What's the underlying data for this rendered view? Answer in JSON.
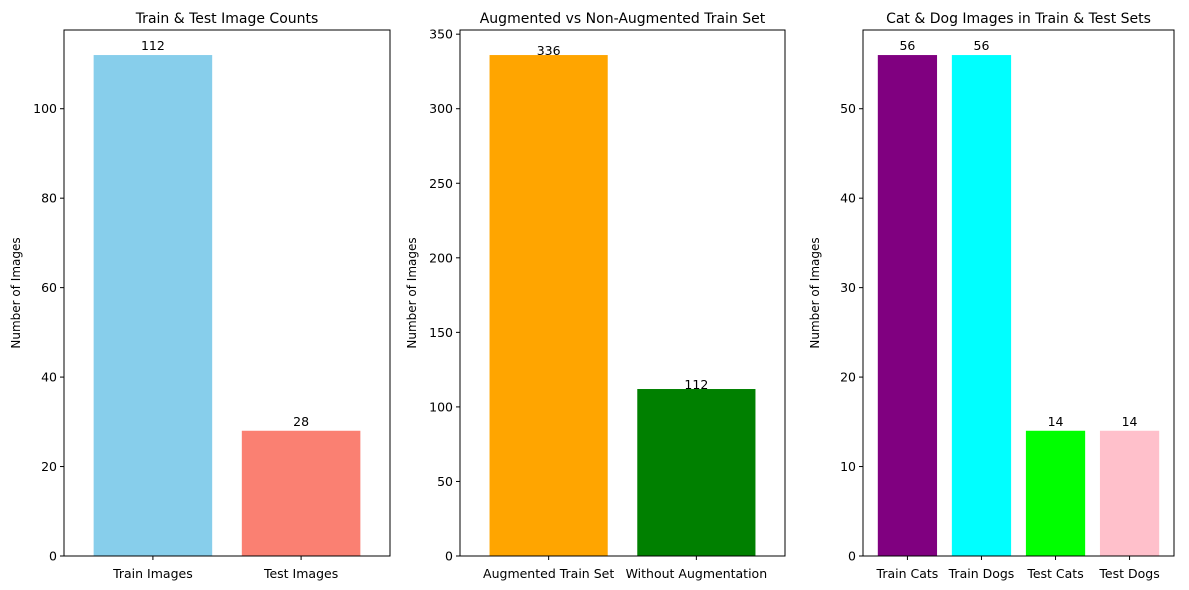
{
  "chart_data": [
    {
      "type": "bar",
      "title": "Train & Test Image Counts",
      "xlabel": "",
      "ylabel": "Number of Images",
      "categories": [
        "Train Images",
        "Test Images"
      ],
      "values": [
        112,
        28
      ],
      "data_labels": [
        "112",
        "28"
      ],
      "colors": [
        "#87ceeb",
        "#fa8072"
      ],
      "ylim": [
        0,
        117.6
      ],
      "yticks": [
        0,
        20,
        40,
        60,
        80,
        100
      ],
      "ytick_labels": [
        "0",
        "20",
        "40",
        "60",
        "80",
        "100"
      ],
      "grid": false,
      "legend": "none"
    },
    {
      "type": "bar",
      "title": "Augmented vs Non-Augmented Train Set",
      "xlabel": "",
      "ylabel": "Number of Images",
      "categories": [
        "Augmented Train Set",
        "Without Augmentation"
      ],
      "values": [
        336,
        112
      ],
      "data_labels": [
        "336",
        "112"
      ],
      "colors": [
        "#ffa500",
        "#008000"
      ],
      "ylim": [
        0,
        352.8
      ],
      "yticks": [
        0,
        50,
        100,
        150,
        200,
        250,
        300,
        350
      ],
      "ytick_labels": [
        "0",
        "50",
        "100",
        "150",
        "200",
        "250",
        "300",
        "350"
      ],
      "grid": false,
      "legend": "none"
    },
    {
      "type": "bar",
      "title": "Cat & Dog Images in Train & Test Sets",
      "xlabel": "",
      "ylabel": "Number of Images",
      "categories": [
        "Train Cats",
        "Train Dogs",
        "Test Cats",
        "Test Dogs"
      ],
      "values": [
        56,
        56,
        14,
        14
      ],
      "data_labels": [
        "56",
        "56",
        "14",
        "14"
      ],
      "colors": [
        "#800080",
        "#00ffff",
        "#00ff00",
        "#ffc0cb"
      ],
      "ylim": [
        0,
        58.8
      ],
      "yticks": [
        0,
        10,
        20,
        30,
        40,
        50
      ],
      "ytick_labels": [
        "0",
        "10",
        "20",
        "30",
        "40",
        "50"
      ],
      "grid": false,
      "legend": "none"
    }
  ]
}
